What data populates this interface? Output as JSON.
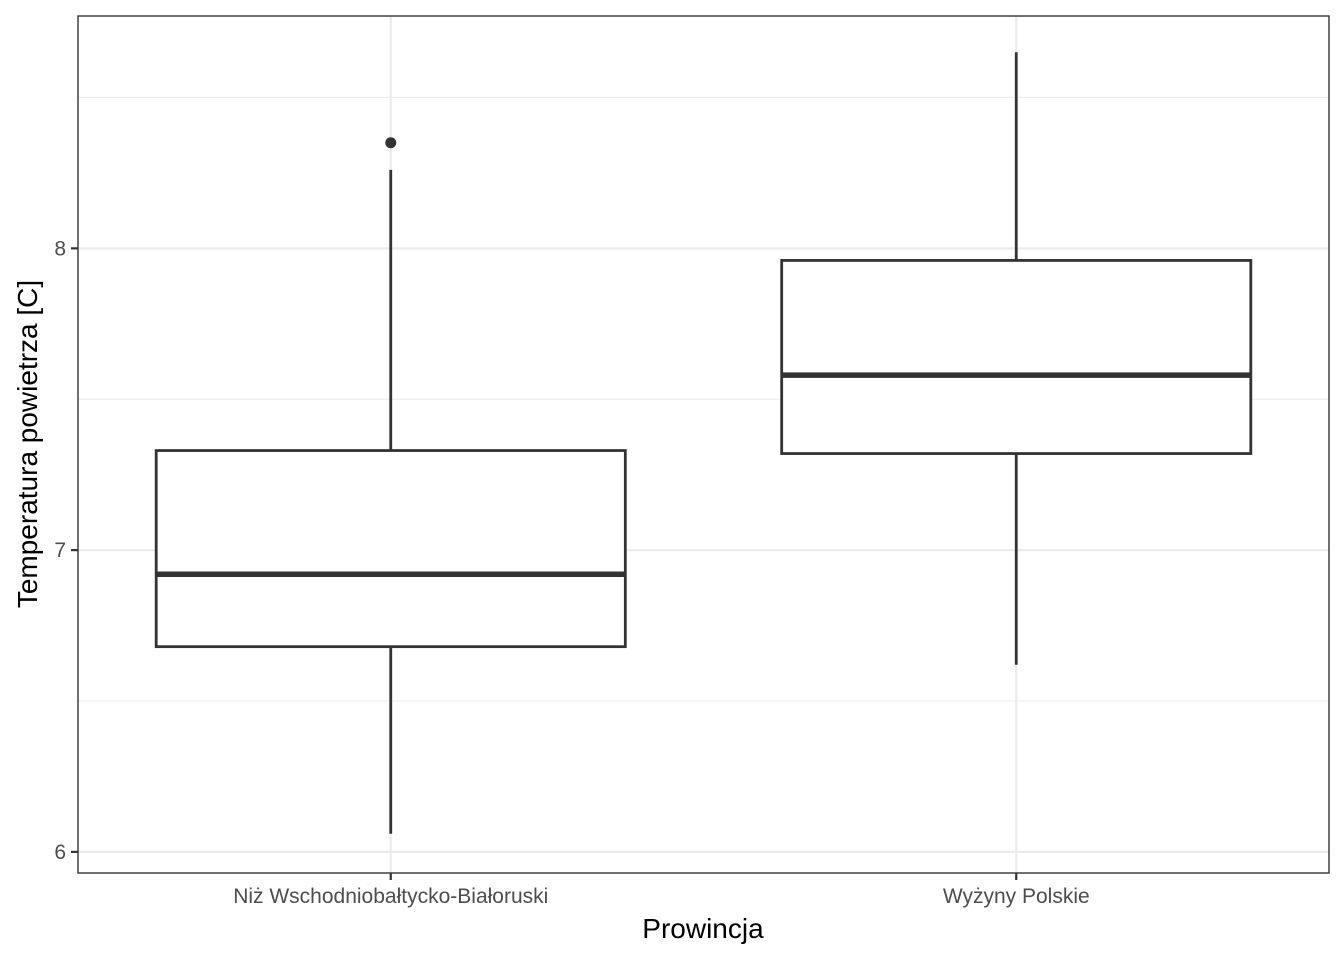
{
  "chart_data": {
    "type": "boxplot",
    "title": "",
    "xlabel": "Prowincja",
    "ylabel": "Temperatura powietrza [C]",
    "ylim": [
      5.93,
      8.77
    ],
    "y_ticks": [
      6,
      7,
      8
    ],
    "y_tick_labels": [
      "6",
      "7",
      "8"
    ],
    "grid": true,
    "categories": [
      "Niż Wschodniobałtycko-Białoruski",
      "Wyżyny Polskie"
    ],
    "boxes": [
      {
        "category": "Niż Wschodniobałtycko-Białoruski",
        "min": 6.06,
        "q1": 6.68,
        "median": 6.92,
        "q3": 7.33,
        "max": 8.26,
        "outliers": [
          8.35
        ]
      },
      {
        "category": "Wyżyny Polskie",
        "min": 6.62,
        "q1": 7.32,
        "median": 7.58,
        "q3": 7.96,
        "max": 8.65,
        "outliers": []
      }
    ],
    "colors": {
      "background": "#ffffff",
      "grid": "#ebebeb",
      "box_stroke": "#333333",
      "panel_border": "#333333",
      "tick_label": "#4d4d4d"
    }
  }
}
